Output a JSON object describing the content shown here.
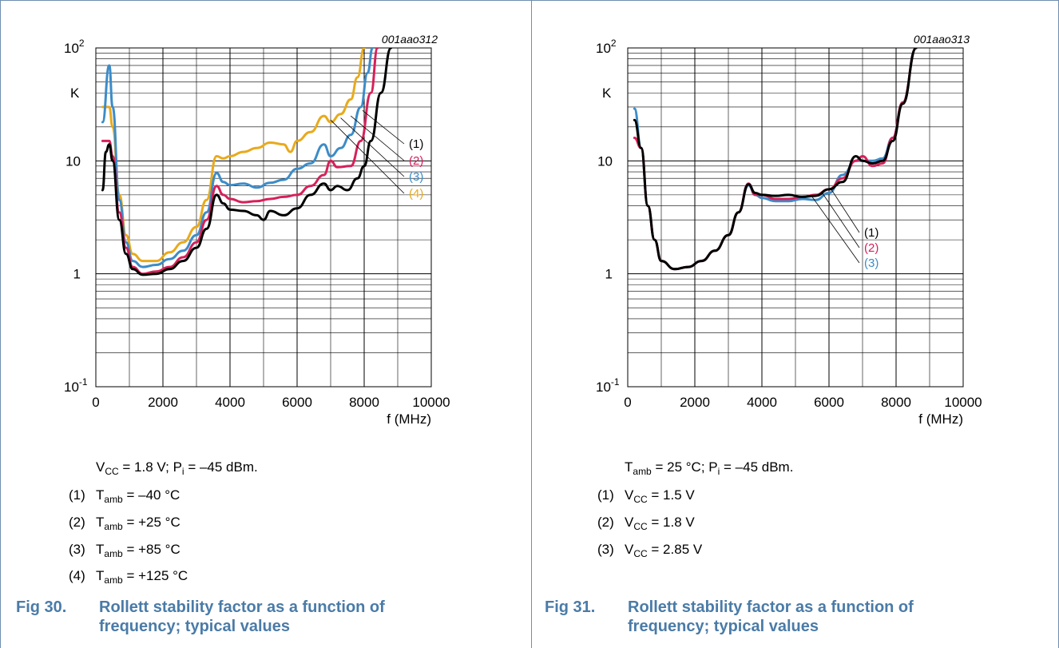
{
  "colors": {
    "black": "#000000",
    "red": "#d6205a",
    "blue": "#3c8cc8",
    "orange": "#e8aa1c",
    "caption": "#4a7ba7",
    "frame": "#6f8fb0"
  },
  "charts": [
    {
      "chart_data": {
        "type": "line",
        "figure_id": "001aao312",
        "ylabel": "K",
        "xlabel": "f (MHz)",
        "yscale": "log",
        "ylim": [
          0.1,
          100
        ],
        "xlim": [
          0,
          10000
        ],
        "xticks": [
          "0",
          "2000",
          "4000",
          "6000",
          "8000",
          "10000"
        ],
        "ytick_labels": {
          "exp_high": "10",
          "exp_high_sup": "2",
          "ten": "10",
          "one": "1",
          "exp_low": "10",
          "exp_low_sup": "-1"
        },
        "grid": true,
        "series": [
          {
            "name": "(1)",
            "color": "#000000",
            "points": [
              [
                200,
                5.5
              ],
              [
                300,
                12
              ],
              [
                400,
                14
              ],
              [
                500,
                10
              ],
              [
                700,
                3
              ],
              [
                900,
                1.5
              ],
              [
                1100,
                1.1
              ],
              [
                1400,
                0.98
              ],
              [
                1800,
                1.0
              ],
              [
                2200,
                1.1
              ],
              [
                2600,
                1.3
              ],
              [
                3000,
                1.7
              ],
              [
                3300,
                2.5
              ],
              [
                3600,
                5.0
              ],
              [
                3800,
                4.2
              ],
              [
                4000,
                3.7
              ],
              [
                4400,
                3.6
              ],
              [
                4800,
                3.3
              ],
              [
                5000,
                3.0
              ],
              [
                5200,
                3.6
              ],
              [
                5600,
                3.3
              ],
              [
                6000,
                3.8
              ],
              [
                6400,
                5.0
              ],
              [
                6800,
                6.3
              ],
              [
                7000,
                5.5
              ],
              [
                7200,
                6.0
              ],
              [
                7500,
                5.5
              ],
              [
                7800,
                7.0
              ],
              [
                8000,
                9.0
              ],
              [
                8200,
                15
              ],
              [
                8500,
                40
              ],
              [
                8800,
                100
              ]
            ]
          },
          {
            "name": "(2)",
            "color": "#d6205a",
            "points": [
              [
                200,
                15
              ],
              [
                400,
                15
              ],
              [
                500,
                11
              ],
              [
                700,
                3.5
              ],
              [
                900,
                1.7
              ],
              [
                1100,
                1.15
              ],
              [
                1400,
                1.0
              ],
              [
                1800,
                1.05
              ],
              [
                2200,
                1.15
              ],
              [
                2600,
                1.4
              ],
              [
                3000,
                1.9
              ],
              [
                3300,
                3.0
              ],
              [
                3600,
                6.0
              ],
              [
                3800,
                5.0
              ],
              [
                4000,
                4.6
              ],
              [
                4400,
                4.3
              ],
              [
                4800,
                4.4
              ],
              [
                5200,
                4.6
              ],
              [
                5600,
                4.8
              ],
              [
                6000,
                5.0
              ],
              [
                6400,
                6.0
              ],
              [
                6800,
                7.5
              ],
              [
                7000,
                10
              ],
              [
                7200,
                8.8
              ],
              [
                7600,
                9.0
              ],
              [
                7900,
                15
              ],
              [
                8200,
                40
              ],
              [
                8400,
                100
              ]
            ]
          },
          {
            "name": "(3)",
            "color": "#3c8cc8",
            "points": [
              [
                200,
                22
              ],
              [
                400,
                70
              ],
              [
                500,
                30
              ],
              [
                700,
                4.5
              ],
              [
                900,
                1.9
              ],
              [
                1100,
                1.3
              ],
              [
                1400,
                1.15
              ],
              [
                1800,
                1.2
              ],
              [
                2200,
                1.35
              ],
              [
                2600,
                1.6
              ],
              [
                3000,
                2.2
              ],
              [
                3300,
                3.5
              ],
              [
                3600,
                7.8
              ],
              [
                3800,
                6.5
              ],
              [
                4000,
                6.1
              ],
              [
                4400,
                6.3
              ],
              [
                4800,
                5.8
              ],
              [
                5200,
                6.4
              ],
              [
                5600,
                6.8
              ],
              [
                6000,
                8.5
              ],
              [
                6400,
                9.5
              ],
              [
                6800,
                14
              ],
              [
                7000,
                11
              ],
              [
                7300,
                13
              ],
              [
                7600,
                17
              ],
              [
                7900,
                30
              ],
              [
                8100,
                60
              ],
              [
                8250,
                100
              ]
            ]
          },
          {
            "name": "(4)",
            "color": "#e8aa1c",
            "points": [
              [
                200,
                30
              ],
              [
                400,
                30
              ],
              [
                500,
                20
              ],
              [
                700,
                5
              ],
              [
                900,
                2.2
              ],
              [
                1100,
                1.5
              ],
              [
                1400,
                1.3
              ],
              [
                1800,
                1.3
              ],
              [
                2200,
                1.55
              ],
              [
                2600,
                1.9
              ],
              [
                3000,
                2.6
              ],
              [
                3300,
                4.5
              ],
              [
                3600,
                11
              ],
              [
                3800,
                10.5
              ],
              [
                4000,
                11
              ],
              [
                4400,
                12
              ],
              [
                4800,
                13
              ],
              [
                5200,
                14.5
              ],
              [
                5600,
                14
              ],
              [
                5800,
                12
              ],
              [
                6000,
                15
              ],
              [
                6400,
                18
              ],
              [
                6800,
                25
              ],
              [
                7000,
                22
              ],
              [
                7300,
                26
              ],
              [
                7600,
                35
              ],
              [
                7800,
                55
              ],
              [
                8000,
                100
              ]
            ]
          }
        ]
      }
    },
    {
      "chart_data": {
        "type": "line",
        "figure_id": "001aao313",
        "ylabel": "K",
        "xlabel": "f (MHz)",
        "yscale": "log",
        "ylim": [
          0.1,
          100
        ],
        "xlim": [
          0,
          10000
        ],
        "xticks": [
          "0",
          "2000",
          "4000",
          "6000",
          "8000",
          "10000"
        ],
        "ytick_labels": {
          "exp_high": "10",
          "exp_high_sup": "2",
          "ten": "10",
          "one": "1",
          "exp_low": "10",
          "exp_low_sup": "-1"
        },
        "grid": true,
        "series": [
          {
            "name": "(1)",
            "color": "#000000",
            "points": [
              [
                200,
                23
              ],
              [
                400,
                13
              ],
              [
                600,
                4
              ],
              [
                800,
                2
              ],
              [
                1000,
                1.3
              ],
              [
                1400,
                1.1
              ],
              [
                1800,
                1.15
              ],
              [
                2200,
                1.3
              ],
              [
                2600,
                1.6
              ],
              [
                3000,
                2.2
              ],
              [
                3300,
                3.5
              ],
              [
                3600,
                6.2
              ],
              [
                3800,
                5.2
              ],
              [
                4000,
                5.0
              ],
              [
                4400,
                4.9
              ],
              [
                4800,
                5.0
              ],
              [
                5200,
                4.8
              ],
              [
                5600,
                4.9
              ],
              [
                6000,
                5.6
              ],
              [
                6400,
                6.5
              ],
              [
                6800,
                11
              ],
              [
                7000,
                10
              ],
              [
                7300,
                9.5
              ],
              [
                7600,
                10
              ],
              [
                7900,
                15
              ],
              [
                8200,
                32
              ],
              [
                8600,
                100
              ]
            ]
          },
          {
            "name": "(2)",
            "color": "#d6205a",
            "points": [
              [
                200,
                16
              ],
              [
                400,
                13
              ],
              [
                600,
                4
              ],
              [
                800,
                2
              ],
              [
                1000,
                1.3
              ],
              [
                1400,
                1.1
              ],
              [
                1800,
                1.15
              ],
              [
                2200,
                1.3
              ],
              [
                2600,
                1.6
              ],
              [
                3000,
                2.2
              ],
              [
                3300,
                3.5
              ],
              [
                3600,
                6.3
              ],
              [
                3800,
                5.0
              ],
              [
                4000,
                5.0
              ],
              [
                4400,
                4.6
              ],
              [
                4800,
                4.6
              ],
              [
                5200,
                4.8
              ],
              [
                5600,
                5.0
              ],
              [
                6000,
                5.6
              ],
              [
                6400,
                7.0
              ],
              [
                6800,
                10
              ],
              [
                7000,
                11
              ],
              [
                7300,
                9.0
              ],
              [
                7600,
                9.5
              ],
              [
                7900,
                16
              ],
              [
                8200,
                33
              ],
              [
                8600,
                100
              ]
            ]
          },
          {
            "name": "(3)",
            "color": "#3c8cc8",
            "points": [
              [
                200,
                29
              ],
              [
                400,
                13
              ],
              [
                600,
                4
              ],
              [
                800,
                2
              ],
              [
                1000,
                1.3
              ],
              [
                1400,
                1.1
              ],
              [
                1800,
                1.15
              ],
              [
                2200,
                1.3
              ],
              [
                2600,
                1.6
              ],
              [
                3000,
                2.2
              ],
              [
                3300,
                3.5
              ],
              [
                3600,
                6.1
              ],
              [
                3800,
                5.0
              ],
              [
                4000,
                4.7
              ],
              [
                4400,
                4.4
              ],
              [
                4800,
                4.4
              ],
              [
                5200,
                4.6
              ],
              [
                5600,
                4.5
              ],
              [
                6000,
                5.2
              ],
              [
                6400,
                7.5
              ],
              [
                6800,
                10
              ],
              [
                7000,
                10
              ],
              [
                7300,
                10
              ],
              [
                7600,
                10.5
              ],
              [
                7900,
                16
              ],
              [
                8200,
                33
              ],
              [
                8600,
                100
              ]
            ]
          }
        ]
      }
    }
  ],
  "left": {
    "conditions": {
      "pre1": "V",
      "sub1": "CC",
      "mid1": " = 1.8 V; P",
      "sub2": "i",
      "post": " = –45 dBm."
    },
    "legend": [
      {
        "num": "(1)",
        "pre": "T",
        "sub": "amb",
        "post": " = –40 °C"
      },
      {
        "num": "(2)",
        "pre": "T",
        "sub": "amb",
        "post": " = +25 °C"
      },
      {
        "num": "(3)",
        "pre": "T",
        "sub": "amb",
        "post": " = +85 °C"
      },
      {
        "num": "(4)",
        "pre": "T",
        "sub": "amb",
        "post": " = +125 °C"
      }
    ],
    "caption": {
      "fig": "Fig 30.",
      "line1": "Rollett stability factor as a function of",
      "line2": "frequency; typical values"
    }
  },
  "right": {
    "conditions": {
      "pre1": "T",
      "sub1": "amb",
      "mid1": " = 25 °C; P",
      "sub2": "i",
      "post": " = –45 dBm."
    },
    "legend": [
      {
        "num": "(1)",
        "pre": "V",
        "sub": "CC",
        "post": " = 1.5 V"
      },
      {
        "num": "(2)",
        "pre": "V",
        "sub": "CC",
        "post": " = 1.8 V"
      },
      {
        "num": "(3)",
        "pre": "V",
        "sub": "CC",
        "post": " = 2.85 V"
      }
    ],
    "caption": {
      "fig": "Fig 31.",
      "line1": "Rollett stability factor as a function of",
      "line2": "frequency; typical values"
    }
  }
}
